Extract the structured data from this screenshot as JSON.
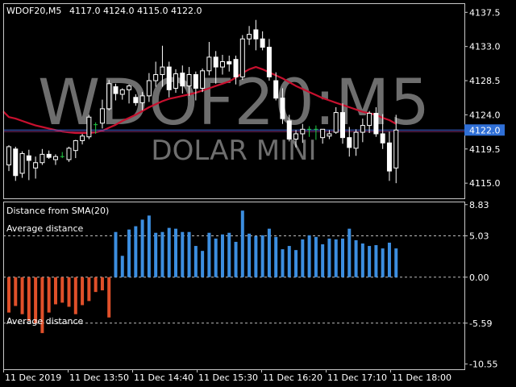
{
  "header": {
    "symbol": "WDOF20,M5",
    "ohlc": "4117.0 4124.0 4115.0 4122.0"
  },
  "watermark": {
    "symbol": "WDOF20:M5",
    "name": "DOLAR MINI"
  },
  "price_panel": {
    "yticks": [
      "4137.5",
      "4133.0",
      "4128.5",
      "4124.0",
      "4119.5",
      "4115.0"
    ],
    "current_price_label": "4122.0",
    "ylim": [
      4113.0,
      4138.7
    ]
  },
  "indicator_panel": {
    "title": "Distance from SMA(20)",
    "avg_upper_label": "Average distance",
    "avg_lower_label": "Average distance",
    "yticks": [
      "8.83",
      "5.03",
      "0.00",
      "-5.59",
      "-10.55"
    ],
    "ylim": [
      -11.2,
      9.2
    ],
    "avg_upper": 5.03,
    "avg_lower": -5.59
  },
  "xticks": [
    "11 Dec 2019",
    "11 Dec 13:50",
    "11 Dec 14:40",
    "11 Dec 15:30",
    "11 Dec 16:20",
    "11 Dec 17:10",
    "11 Dec 18:00"
  ],
  "colors": {
    "bg": "#000000",
    "grid": "#c8c8c8",
    "up_candle": "#ffffff",
    "down_candle": "#ffffff",
    "sma": "#c8102e",
    "pos_bar": "#3c8ee0",
    "neg_bar": "#e0502a",
    "price_label_bg": "#2f6fd6"
  },
  "chart_data": [
    {
      "type": "candlestick",
      "title": "WDOF20,M5",
      "note": "approximate OHLC of each 5-minute bar",
      "candles": [
        [
          4117.4,
          4120.0,
          4116.6,
          4119.8
        ],
        [
          4119.5,
          4119.8,
          4115.3,
          4116.0
        ],
        [
          4116.3,
          4119.2,
          4115.7,
          4118.9
        ],
        [
          4118.6,
          4119.4,
          4115.4,
          4118.0
        ],
        [
          4117.0,
          4118.5,
          4115.6,
          4117.7
        ],
        [
          4117.7,
          4119.5,
          4117.4,
          4118.8
        ],
        [
          4118.8,
          4119.3,
          4118.2,
          4118.4
        ],
        [
          4118.1,
          4118.8,
          4117.4,
          4118.5
        ],
        [
          4118.5,
          4119.1,
          4118.3,
          4118.4
        ],
        [
          4118.1,
          4119.8,
          4117.8,
          4119.6
        ],
        [
          4119.3,
          4120.7,
          4118.3,
          4120.6
        ],
        [
          4120.6,
          4121.5,
          4120.1,
          4121.2
        ],
        [
          4121.1,
          4124.0,
          4120.8,
          4123.7
        ],
        [
          4122.7,
          4123.0,
          4121.5,
          4122.9
        ],
        [
          4122.9,
          4126.0,
          4122.2,
          4124.8
        ],
        [
          4124.8,
          4128.6,
          4124.6,
          4128.1
        ],
        [
          4127.7,
          4128.1,
          4125.9,
          4126.8
        ],
        [
          4126.7,
          4127.5,
          4126.0,
          4127.3
        ],
        [
          4127.3,
          4128.0,
          4125.5,
          4127.8
        ],
        [
          4126.3,
          4126.7,
          4125.2,
          4125.6
        ],
        [
          4125.6,
          4127.0,
          4124.6,
          4126.5
        ],
        [
          4126.5,
          4129.5,
          4125.7,
          4128.5
        ],
        [
          4128.5,
          4131.0,
          4127.7,
          4129.3
        ],
        [
          4129.3,
          4133.1,
          4127.7,
          4130.3
        ],
        [
          4130.3,
          4131.0,
          4126.3,
          4127.3
        ],
        [
          4127.5,
          4130.0,
          4126.9,
          4129.4
        ],
        [
          4129.5,
          4130.5,
          4126.8,
          4127.8
        ],
        [
          4127.8,
          4130.3,
          4126.5,
          4129.3
        ],
        [
          4129.3,
          4129.7,
          4125.9,
          4127.5
        ],
        [
          4127.5,
          4130.1,
          4127.0,
          4129.8
        ],
        [
          4129.8,
          4133.6,
          4129.2,
          4131.6
        ],
        [
          4131.6,
          4132.4,
          4128.1,
          4130.3
        ],
        [
          4130.3,
          4131.9,
          4129.3,
          4131.0
        ],
        [
          4131.0,
          4131.8,
          4129.7,
          4130.7
        ],
        [
          4131.3,
          4131.8,
          4128.0,
          4129.0
        ],
        [
          4129.0,
          4134.5,
          4128.6,
          4134.0
        ],
        [
          4134.0,
          4135.7,
          4133.2,
          4134.6
        ],
        [
          4135.2,
          4136.5,
          4132.5,
          4134.0
        ],
        [
          4134.0,
          4135.0,
          4132.5,
          4132.9
        ],
        [
          4132.9,
          4134.0,
          4128.5,
          4129.0
        ],
        [
          4128.5,
          4129.6,
          4125.9,
          4126.2
        ],
        [
          4126.2,
          4127.5,
          4122.8,
          4123.5
        ],
        [
          4123.2,
          4124.0,
          4120.5,
          4120.8
        ],
        [
          4120.8,
          4122.0,
          4119.7,
          4121.5
        ],
        [
          4121.5,
          4122.8,
          4120.3,
          4122.1
        ],
        [
          4122.1,
          4122.5,
          4121.1,
          4122.1
        ],
        [
          4122.1,
          4122.6,
          4120.7,
          4122.3
        ],
        [
          4121.0,
          4122.1,
          4120.2,
          4122.1
        ],
        [
          4121.2,
          4122.0,
          4120.8,
          4121.5
        ],
        [
          4121.7,
          4125.0,
          4121.5,
          4124.3
        ],
        [
          4124.3,
          4125.5,
          4120.2,
          4121.0
        ],
        [
          4121.0,
          4122.4,
          4118.5,
          4119.7
        ],
        [
          4119.6,
          4122.1,
          4118.6,
          4121.7
        ],
        [
          4121.7,
          4123.5,
          4120.4,
          4122.6
        ],
        [
          4122.6,
          4124.5,
          4121.6,
          4124.2
        ],
        [
          4124.2,
          4125.0,
          4121.1,
          4121.5
        ],
        [
          4121.5,
          4124.1,
          4119.5,
          4120.3
        ],
        [
          4120.3,
          4121.8,
          4115.3,
          4116.6
        ],
        [
          4117.0,
          4124.0,
          4115.0,
          4122.0
        ]
      ]
    },
    {
      "type": "line",
      "name": "SMA(20)",
      "values": [
        4123.7,
        4123.5,
        4123.2,
        4122.9,
        4122.6,
        4122.4,
        4122.2,
        4122.0,
        4121.8,
        4121.7,
        4121.6,
        4121.6,
        4121.6,
        4121.7,
        4121.9,
        4122.3,
        4122.7,
        4123.2,
        4123.6,
        4124.0,
        4124.5,
        4125.0,
        4125.4,
        4125.8,
        4126.1,
        4126.3,
        4126.5,
        4126.7,
        4126.9,
        4127.2,
        4127.5,
        4127.8,
        4128.1,
        4128.4,
        4128.9,
        4129.5,
        4130.0,
        4130.3,
        4130.0,
        4129.6,
        4129.2,
        4128.8,
        4128.3,
        4127.8,
        4127.4,
        4127.0,
        4126.6,
        4126.2,
        4125.9,
        4125.6,
        4125.3,
        4125.0,
        4124.7,
        4124.4,
        4124.2,
        4124.0,
        4123.6,
        4123.3,
        4122.8
      ]
    },
    {
      "type": "bar",
      "title": "Distance from SMA(20)",
      "values": [
        -4.3,
        -3.5,
        -4.5,
        -5.3,
        -5.6,
        -6.8,
        -4.3,
        -3.3,
        -3.1,
        -3.6,
        -4.5,
        -3.4,
        -2.9,
        -1.8,
        -1.6,
        -4.9,
        5.5,
        2.6,
        5.8,
        6.2,
        7.0,
        7.5,
        5.4,
        5.5,
        6.0,
        5.9,
        5.5,
        5.5,
        3.8,
        3.2,
        5.4,
        4.7,
        5.2,
        5.4,
        4.3,
        8.1,
        5.3,
        5.0,
        5.1,
        5.9,
        4.9,
        3.4,
        3.8,
        3.3,
        4.6,
        5.1,
        4.9,
        4.0,
        4.7,
        4.6,
        4.7,
        5.9,
        4.5,
        4.1,
        3.8,
        3.9,
        3.5,
        4.2,
        3.5
      ]
    }
  ]
}
